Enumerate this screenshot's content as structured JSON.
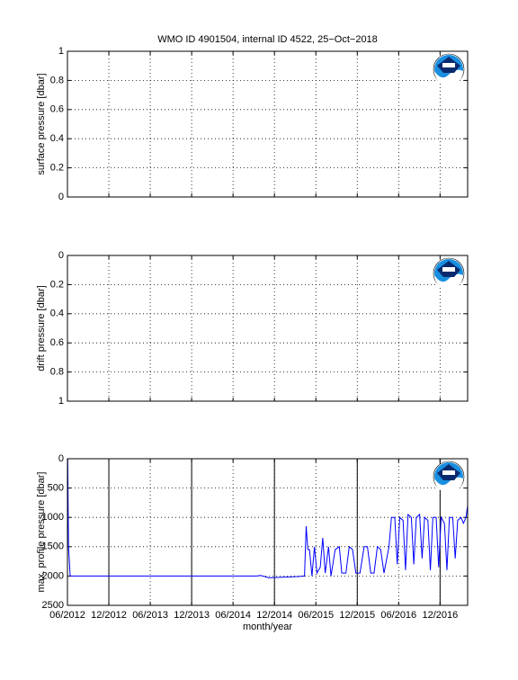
{
  "chart_data": [
    {
      "type": "line",
      "title": "WMO ID 4901504, internal ID 4522, 25−Oct−2018",
      "ylabel": "surface pressure [dbar]",
      "ylim": [
        0,
        1
      ],
      "yticks": [
        0,
        0.2,
        0.4,
        0.6,
        0.8,
        1
      ],
      "reversed": false,
      "xlim": [
        2012.417,
        2017.25
      ],
      "xticks": [
        2012.417,
        2012.917,
        2013.417,
        2013.917,
        2014.417,
        2014.917,
        2015.417,
        2015.917,
        2016.417,
        2016.917
      ],
      "grid": true
    },
    {
      "type": "line",
      "ylabel": "drift pressure [dbar]",
      "ylim": [
        0,
        1
      ],
      "yticks": [
        0,
        0.2,
        0.4,
        0.6,
        0.8,
        1
      ],
      "reversed": true,
      "xlim": [
        2012.417,
        2017.25
      ],
      "xticks": [
        2012.417,
        2012.917,
        2013.417,
        2013.917,
        2014.417,
        2014.917,
        2015.417,
        2015.917,
        2016.417,
        2016.917
      ],
      "grid": true
    },
    {
      "type": "line",
      "ylabel": "max. profile pressure [dbar]",
      "xlabel": "month/year",
      "ylim": [
        0,
        2500
      ],
      "yticks": [
        0,
        500,
        1000,
        1500,
        2000,
        2500
      ],
      "reversed": true,
      "xlim": [
        2012.417,
        2017.25
      ],
      "xticks": [
        {
          "value": 2012.417,
          "label": "06/2012"
        },
        {
          "value": 2012.917,
          "label": "12/2012"
        },
        {
          "value": 2013.417,
          "label": "06/2013"
        },
        {
          "value": 2013.917,
          "label": "12/2013"
        },
        {
          "value": 2014.417,
          "label": "06/2014"
        },
        {
          "value": 2014.917,
          "label": "12/2014"
        },
        {
          "value": 2015.417,
          "label": "06/2015"
        },
        {
          "value": 2015.917,
          "label": "12/2015"
        },
        {
          "value": 2016.417,
          "label": "06/2016"
        },
        {
          "value": 2016.917,
          "label": "12/2016"
        }
      ],
      "grid": true,
      "year_lines": [
        2012.917,
        2013.917,
        2014.917,
        2015.917,
        2016.917
      ],
      "series": [
        {
          "color": "#0000ff",
          "x": [
            2012.42,
            2012.43,
            2012.45,
            2013.5,
            2014.7,
            2014.75,
            2014.85,
            2015.2,
            2015.28,
            2015.3,
            2015.32,
            2015.34,
            2015.37,
            2015.4,
            2015.43,
            2015.47,
            2015.5,
            2015.53,
            2015.57,
            2015.6,
            2015.65,
            2015.7,
            2015.73,
            2015.78,
            2015.82,
            2015.86,
            2015.9,
            2015.95,
            2016.0,
            2016.04,
            2016.08,
            2016.12,
            2016.16,
            2016.2,
            2016.24,
            2016.3,
            2016.33,
            2016.37,
            2016.4,
            2016.43,
            2016.47,
            2016.5,
            2016.53,
            2016.57,
            2016.6,
            2016.63,
            2016.67,
            2016.7,
            2016.73,
            2016.77,
            2016.8,
            2016.83,
            2016.87,
            2016.9,
            2016.93,
            2016.97,
            2017.0,
            2017.03,
            2017.07,
            2017.1,
            2017.13,
            2017.17,
            2017.2,
            2017.23,
            2017.25
          ],
          "values": [
            0,
            1500,
            2000,
            2000,
            2000,
            1990,
            2030,
            2010,
            2000,
            1150,
            1550,
            1550,
            2000,
            1500,
            1950,
            1850,
            1350,
            1950,
            1500,
            2000,
            1550,
            1500,
            1950,
            1950,
            1500,
            1550,
            1950,
            1950,
            1500,
            1500,
            1950,
            1950,
            1500,
            1550,
            1950,
            1500,
            1000,
            1000,
            1800,
            1000,
            1050,
            1900,
            950,
            1000,
            1800,
            1000,
            950,
            1700,
            1000,
            1050,
            1900,
            1000,
            1000,
            1850,
            1000,
            1100,
            1900,
            1000,
            1000,
            1700,
            1050,
            1000,
            1100,
            1000,
            800
          ]
        }
      ]
    }
  ]
}
